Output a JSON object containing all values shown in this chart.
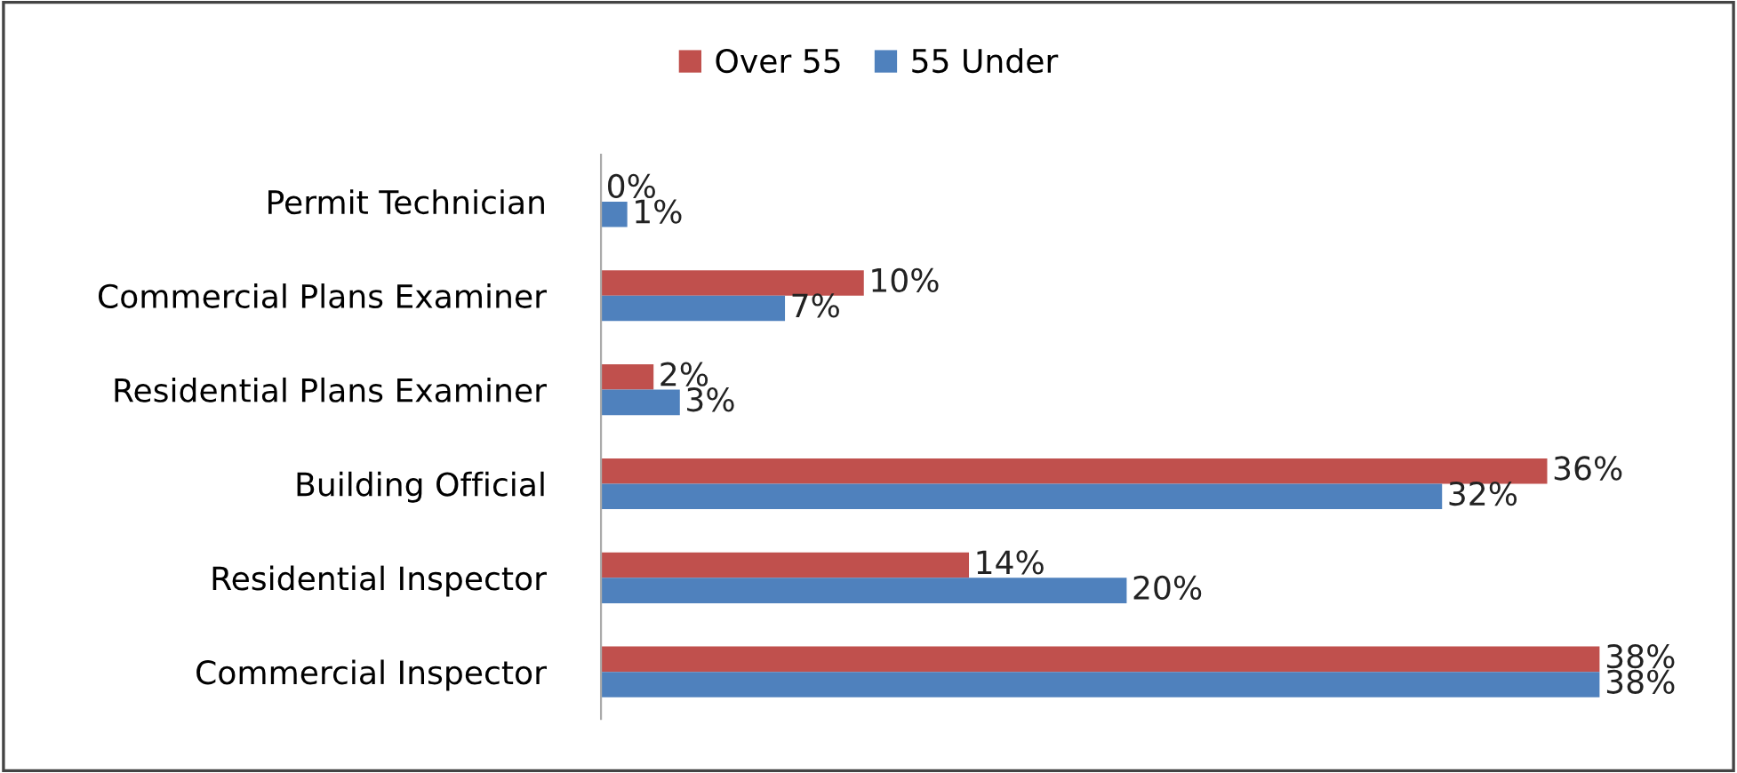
{
  "chart_data": {
    "type": "bar",
    "orientation": "horizontal",
    "legend": "top",
    "categories": [
      "Permit Technician",
      "Commercial Plans Examiner",
      "Residential Plans Examiner",
      "Building Official",
      "Residential Inspector",
      "Commercial Inspector"
    ],
    "series": [
      {
        "name": "Over 55",
        "color": "#c0504d",
        "values": [
          0,
          10,
          2,
          36,
          14,
          38
        ],
        "value_labels": [
          "0%",
          "10%",
          "2%",
          "36%",
          "14%",
          "38%"
        ]
      },
      {
        "name": "55 Under",
        "color": "#4f81bd",
        "values": [
          1,
          7,
          3,
          32,
          20,
          38
        ],
        "value_labels": [
          "1%",
          "7%",
          "3%",
          "32%",
          "20%",
          "38%"
        ]
      }
    ]
  }
}
